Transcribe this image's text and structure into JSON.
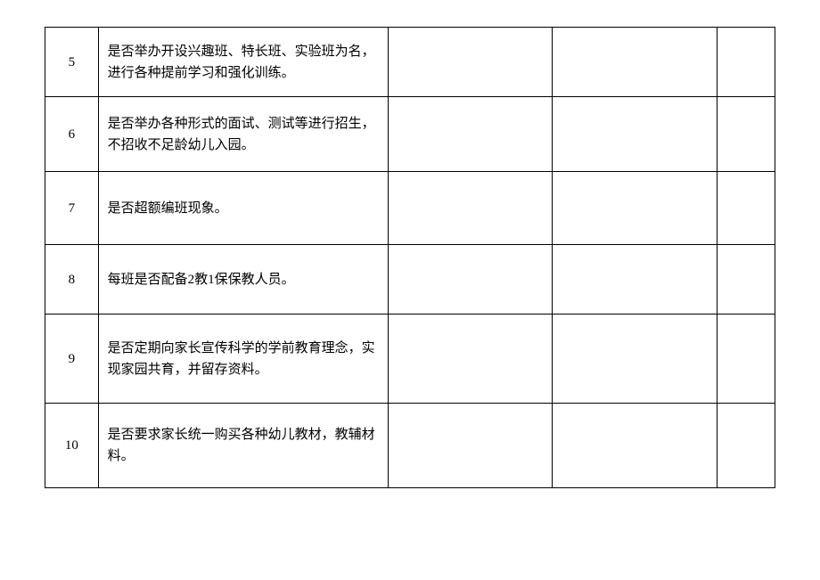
{
  "table": {
    "rows": [
      {
        "num": "5",
        "desc": "是否举办开设兴趣班、特长班、实验班为名，进行各种提前学习和强化训练。",
        "c3": "",
        "c4": "",
        "c5": ""
      },
      {
        "num": "6",
        "desc": "是否举办各种形式的面试、测试等进行招生，不招收不足龄幼儿入园。",
        "c3": "",
        "c4": "",
        "c5": ""
      },
      {
        "num": "7",
        "desc": "是否超额编班现象。",
        "c3": "",
        "c4": "",
        "c5": ""
      },
      {
        "num": "8",
        "desc": "每班是否配备2教1保保教人员。",
        "c3": "",
        "c4": "",
        "c5": ""
      },
      {
        "num": "9",
        "desc": "是否定期向家长宣传科学的学前教育理念，实现家园共育，并留存资料。",
        "c3": "",
        "c4": "",
        "c5": ""
      },
      {
        "num": "10",
        "desc": "是否要求家长统一购买各种幼儿教材，教辅材料。",
        "c3": "",
        "c4": "",
        "c5": ""
      }
    ]
  }
}
